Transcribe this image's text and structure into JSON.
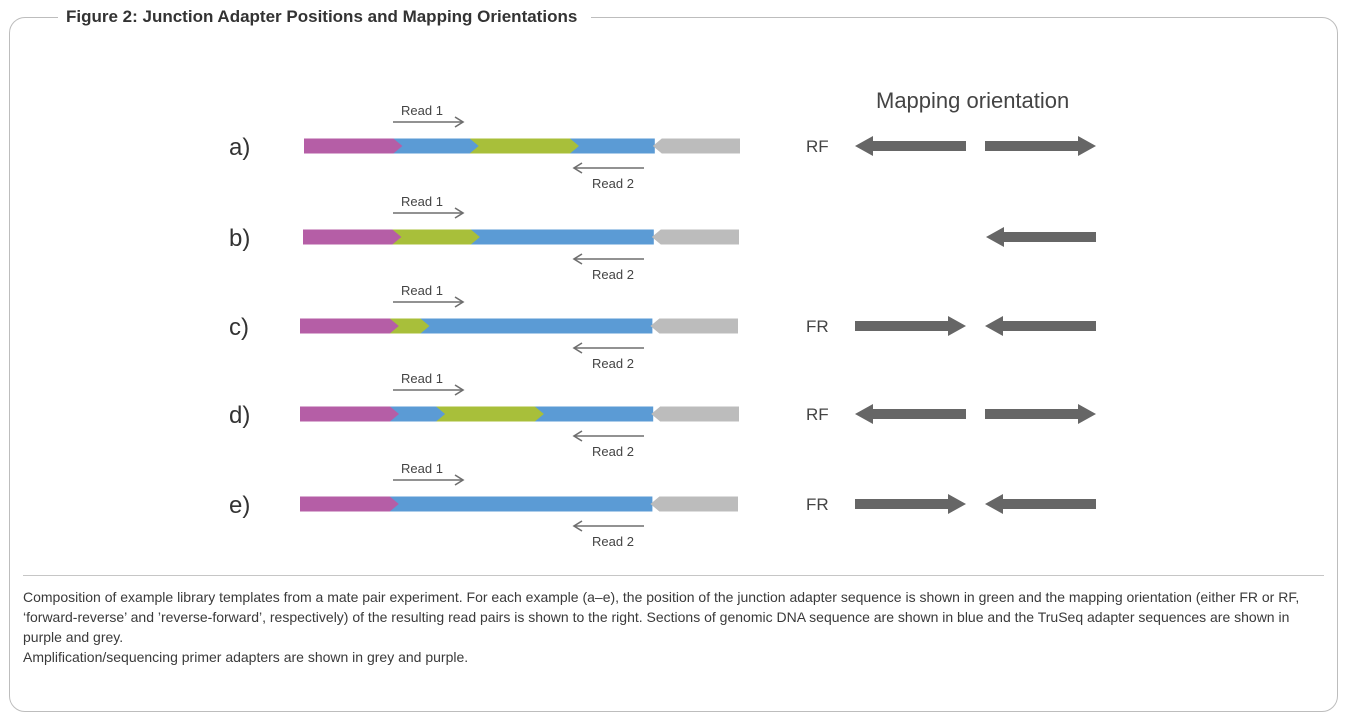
{
  "figure": {
    "title": "Figure 2: Junction Adapter Positions and Mapping Orientations",
    "mapping_heading": "Mapping orientation",
    "read1_label": "Read 1",
    "read2_label": "Read 2"
  },
  "colors": {
    "purple": "#b55ea6",
    "blue": "#5b9bd5",
    "green": "#a8bf3a",
    "grey_adapter": "#bcbcbc",
    "orientation_arrow": "#666666",
    "read_arrow": "#6e6e6e",
    "frame": "#bdbdbd"
  },
  "rows": [
    {
      "label": "a)",
      "orientation": "RF",
      "arrows": [
        "left",
        "right"
      ],
      "green_start_frac": 0.38,
      "green_end_frac": 0.61
    },
    {
      "label": "b)",
      "orientation": "",
      "arrows": [
        "left-only"
      ],
      "green_start_frac": 0.2,
      "green_end_frac": 0.385
    },
    {
      "label": "c)",
      "orientation": "FR",
      "arrows": [
        "right",
        "left"
      ],
      "green_start_frac": 0.2,
      "green_end_frac": 0.275
    },
    {
      "label": "d)",
      "orientation": "RF",
      "arrows": [
        "left",
        "right"
      ],
      "green_start_frac": 0.31,
      "green_end_frac": 0.535
    },
    {
      "label": "e)",
      "orientation": "FR",
      "arrows": [
        "right",
        "left"
      ],
      "green_start_frac": null,
      "green_end_frac": null
    }
  ],
  "caption": {
    "paragraph1": "Composition of example library templates from a mate pair experiment. For each example (a–e), the position of the junction adapter sequence is shown in green and the mapping orientation (either FR or RF, ‘forward-reverse’ and ’reverse-forward’, respectively) of the resulting read pairs is shown to the right. Sections of genomic DNA sequence are shown in blue and the TruSeq adapter sequences are shown in purple and grey.",
    "paragraph2": "Amplification/sequencing primer adapters are shown in grey and purple."
  }
}
